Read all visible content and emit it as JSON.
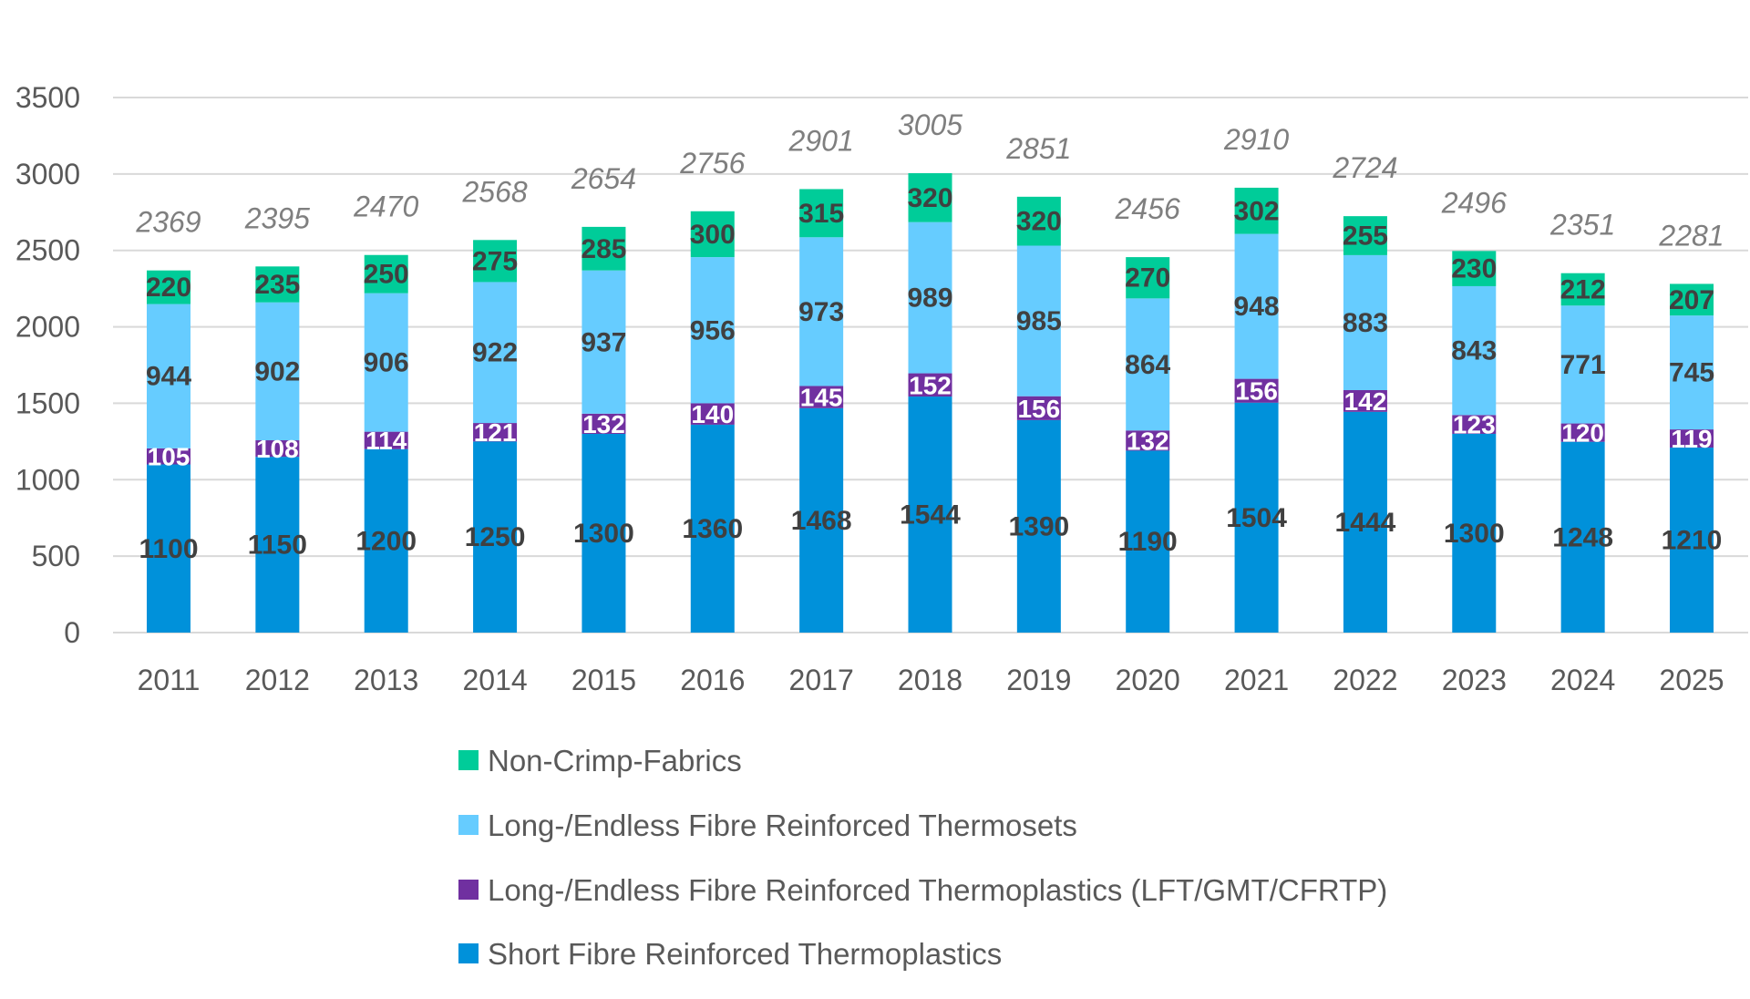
{
  "chart_data": {
    "type": "bar",
    "stacked": true,
    "categories": [
      "2011",
      "2012",
      "2013",
      "2014",
      "2015",
      "2016",
      "2017",
      "2018",
      "2019",
      "2020",
      "2021",
      "2022",
      "2023",
      "2024",
      "2025"
    ],
    "series": [
      {
        "name": "Short Fibre Reinforced Thermoplastics",
        "color": "#0091DA",
        "values": [
          1100,
          1150,
          1200,
          1250,
          1300,
          1360,
          1468,
          1544,
          1390,
          1190,
          1504,
          1444,
          1300,
          1248,
          1210
        ]
      },
      {
        "name": "Long-/Endless Fibre Reinforced Thermoplastics (LFT/GMT/CFRTP)",
        "color": "#7030A0",
        "values": [
          105,
          108,
          114,
          121,
          132,
          140,
          145,
          152,
          156,
          132,
          156,
          142,
          123,
          120,
          119
        ]
      },
      {
        "name": "Long-/Endless Fibre Reinforced Thermosets",
        "color": "#66CCFF",
        "values": [
          944,
          902,
          906,
          922,
          937,
          956,
          973,
          989,
          985,
          864,
          948,
          883,
          843,
          771,
          745
        ]
      },
      {
        "name": "Non-Crimp-Fabrics",
        "color": "#00CC99",
        "values": [
          220,
          235,
          250,
          275,
          285,
          300,
          315,
          320,
          320,
          270,
          302,
          255,
          230,
          212,
          207
        ]
      }
    ],
    "totals": [
      2369,
      2395,
      2470,
      2568,
      2654,
      2756,
      2901,
      3005,
      2851,
      2456,
      2910,
      2724,
      2496,
      2351,
      2281
    ],
    "yticks": [
      "0",
      "500",
      "1000",
      "1500",
      "2000",
      "2500",
      "3000",
      "3500"
    ],
    "ylim": [
      0,
      3500
    ],
    "grid": true,
    "legend_position": "bottom",
    "legend_order": [
      3,
      2,
      1,
      0
    ]
  }
}
